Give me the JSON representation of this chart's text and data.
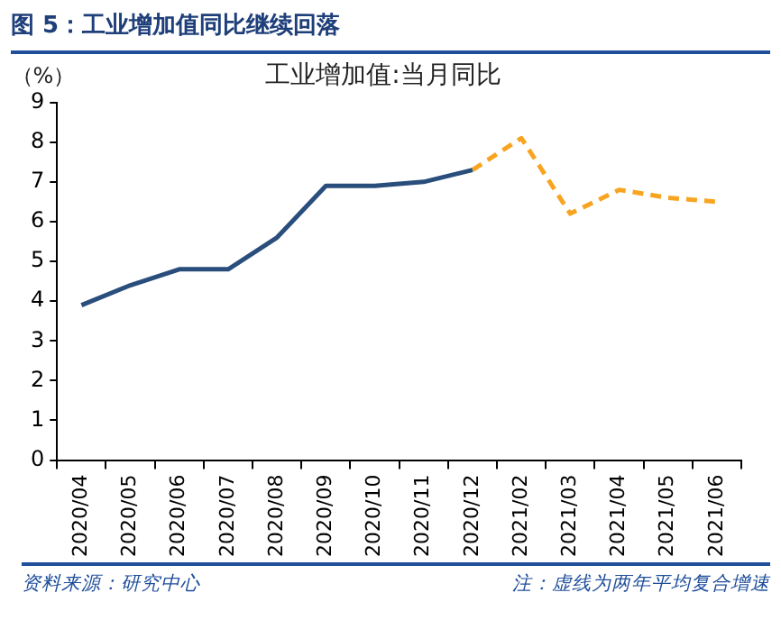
{
  "chart_data": {
    "type": "line",
    "title": "工业增加值:当月同比",
    "ylabel": "（%）",
    "categories": [
      "2020/04",
      "2020/05",
      "2020/06",
      "2020/07",
      "2020/08",
      "2020/09",
      "2020/10",
      "2020/11",
      "2020/12",
      "2021/02",
      "2021/03",
      "2021/04",
      "2021/05",
      "2021/06"
    ],
    "series": [
      {
        "color": "#2a4e7c",
        "line_style": "solid",
        "values": [
          3.9,
          4.4,
          4.8,
          4.8,
          5.6,
          6.9,
          6.9,
          7.0,
          7.3,
          null,
          null,
          null,
          null,
          null
        ]
      },
      {
        "color": "#f7a521",
        "line_style": "dashed",
        "values": [
          null,
          null,
          null,
          null,
          null,
          null,
          null,
          null,
          7.3,
          8.1,
          6.2,
          6.8,
          6.6,
          6.5
        ]
      }
    ],
    "ylim": [
      0,
      9
    ],
    "yticks": [
      0,
      1,
      2,
      3,
      4,
      5,
      6,
      7,
      8,
      9
    ],
    "grid": false,
    "legend": false,
    "marker": "none",
    "annotations": [
      "图 5：工业增加值同比继续回落",
      "资料来源：研究中心",
      "注：虚线为两年平均复合增速"
    ]
  }
}
